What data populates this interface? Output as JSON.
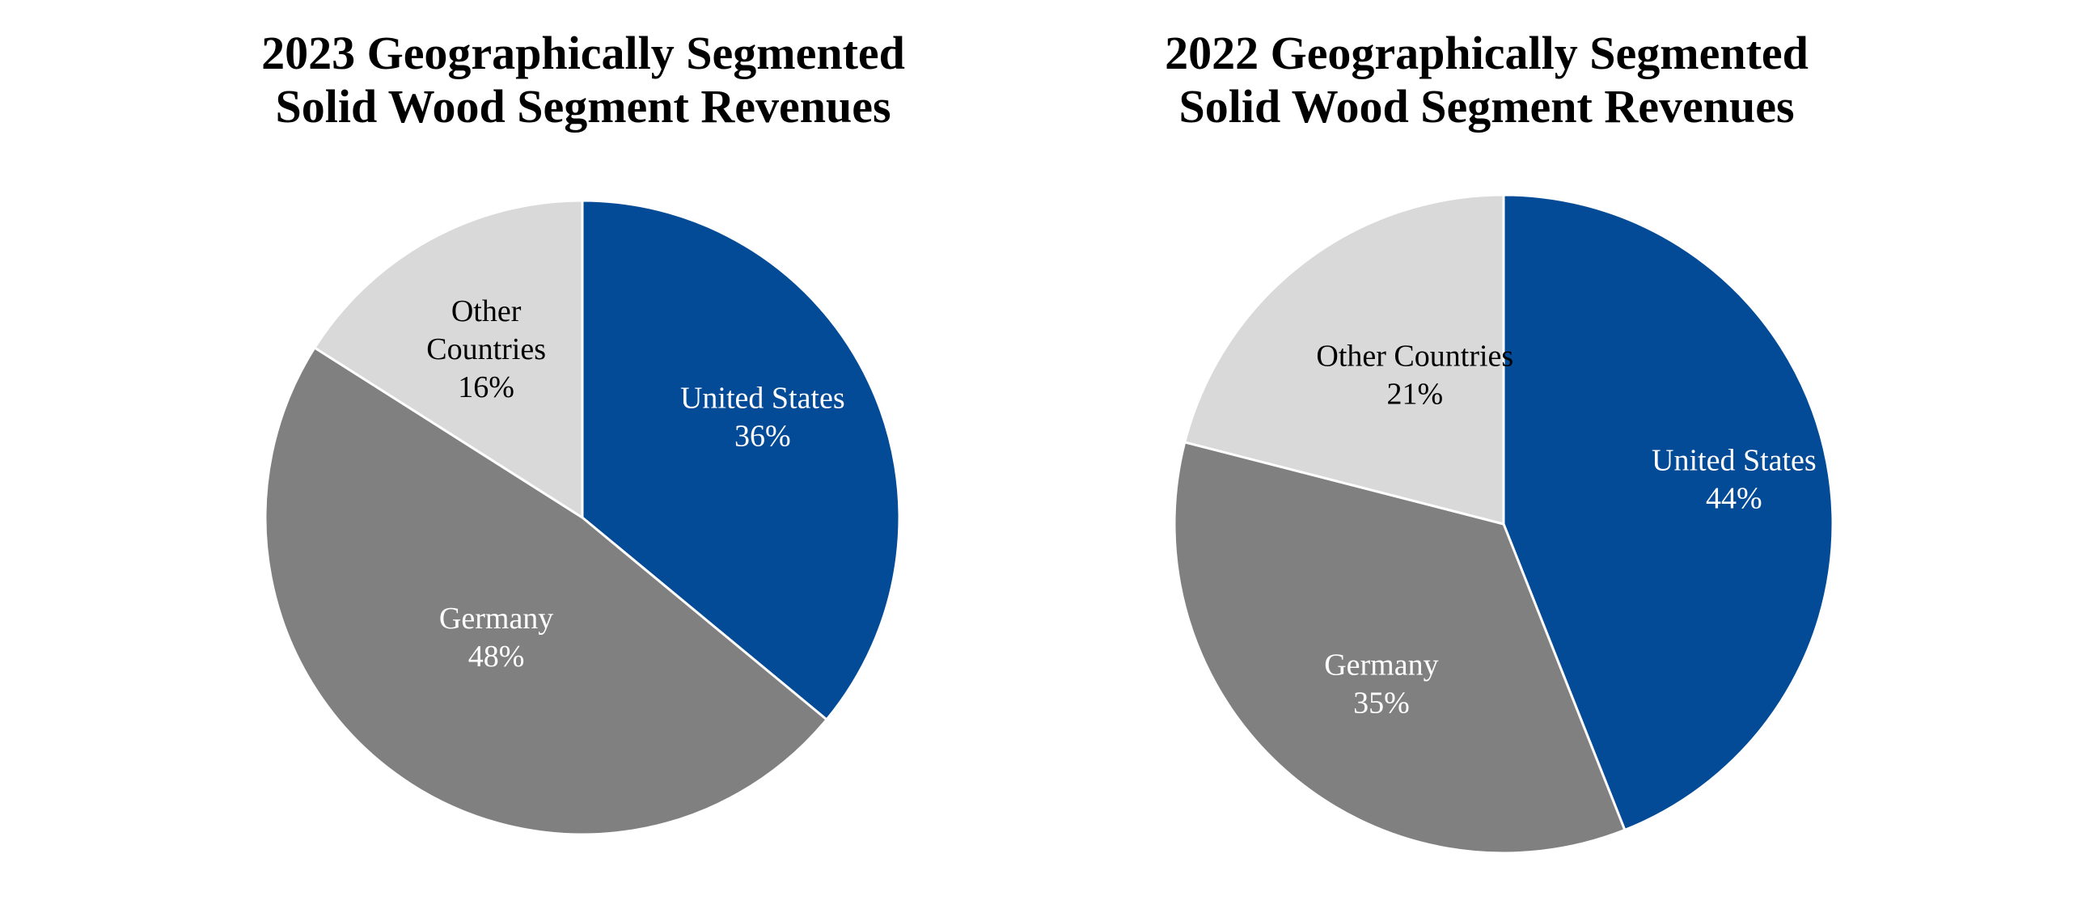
{
  "chart_data": [
    {
      "type": "pie",
      "title": [
        "2023 Geographically Segmented",
        "Solid Wood Segment Revenues"
      ],
      "slices": [
        {
          "name": "United States",
          "value": 36,
          "label_lines": [
            "United States",
            "36%"
          ],
          "color": "#034A97",
          "text_color": "#FFFFFF"
        },
        {
          "name": "Germany",
          "value": 48,
          "label_lines": [
            "Germany",
            "48%"
          ],
          "color": "#808080",
          "text_color": "#FFFFFF"
        },
        {
          "name": "Other Countries",
          "value": 16,
          "label_lines": [
            "Other",
            "Countries",
            "16%"
          ],
          "color": "#D9D9D9",
          "text_color": "#000000"
        }
      ],
      "start": "12 o'clock",
      "direction": "clockwise"
    },
    {
      "type": "pie",
      "title": [
        "2022 Geographically Segmented",
        "Solid Wood Segment Revenues"
      ],
      "slices": [
        {
          "name": "United States",
          "value": 44,
          "label_lines": [
            "United States",
            "44%"
          ],
          "color": "#034A97",
          "text_color": "#FFFFFF"
        },
        {
          "name": "Germany",
          "value": 35,
          "label_lines": [
            "Germany",
            "35%"
          ],
          "color": "#808080",
          "text_color": "#FFFFFF"
        },
        {
          "name": "Other Countries",
          "value": 21,
          "label_lines": [
            "Other Countries",
            "21%"
          ],
          "color": "#D9D9D9",
          "text_color": "#000000"
        }
      ],
      "start": "12 o'clock",
      "direction": "clockwise"
    }
  ]
}
